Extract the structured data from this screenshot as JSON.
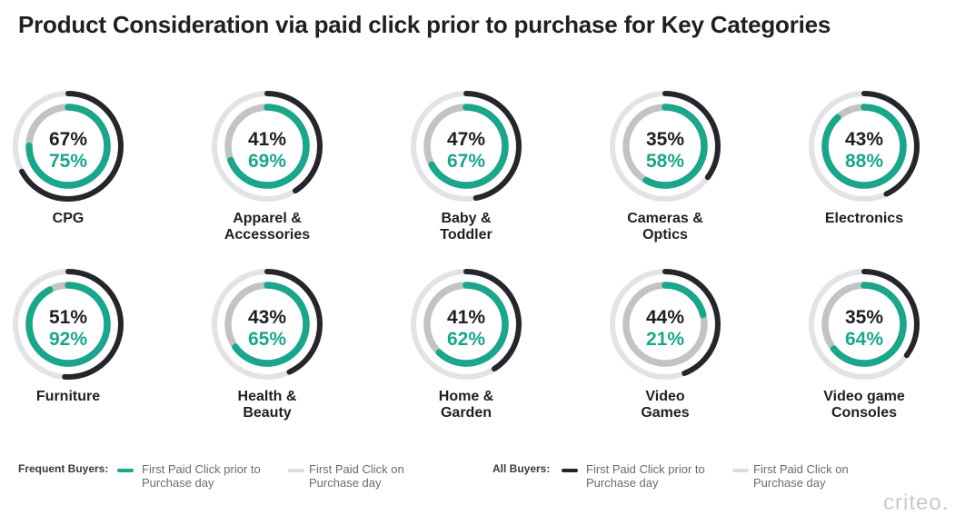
{
  "title": "Product Consideration via paid click prior to purchase for Key Categories",
  "colors": {
    "frequent": "#1aa68a",
    "all": "#25252b",
    "frequent_track": "#c3c3c6",
    "all_track": "#e3e3e5"
  },
  "chart_data": {
    "type": "radial-progress",
    "title": "Product Consideration via paid click prior to purchase for Key Categories",
    "series": [
      {
        "name": "All Buyers: First Paid Click prior to Purchase day",
        "values": [
          67,
          41,
          47,
          35,
          43,
          51,
          43,
          41,
          44,
          35
        ]
      },
      {
        "name": "Frequent Buyers: First Paid Click prior to Purchase day",
        "values": [
          75,
          69,
          67,
          58,
          88,
          92,
          65,
          62,
          21,
          64
        ]
      }
    ],
    "categories": [
      {
        "label_lines": [
          "CPG"
        ],
        "all": 67,
        "frequent": 75,
        "all_text": "67%",
        "frequent_text": "75%"
      },
      {
        "label_lines": [
          "Apparel &",
          "Accessories"
        ],
        "all": 41,
        "frequent": 69,
        "all_text": "41%",
        "frequent_text": "69%"
      },
      {
        "label_lines": [
          "Baby &",
          "Toddler"
        ],
        "all": 47,
        "frequent": 67,
        "all_text": "47%",
        "frequent_text": "67%"
      },
      {
        "label_lines": [
          "Cameras &",
          "Optics"
        ],
        "all": 35,
        "frequent": 58,
        "all_text": "35%",
        "frequent_text": "58%"
      },
      {
        "label_lines": [
          "Electronics"
        ],
        "all": 43,
        "frequent": 88,
        "all_text": "43%",
        "frequent_text": "88%"
      },
      {
        "label_lines": [
          "Furniture"
        ],
        "all": 51,
        "frequent": 92,
        "all_text": "51%",
        "frequent_text": "92%"
      },
      {
        "label_lines": [
          "Health &",
          "Beauty"
        ],
        "all": 43,
        "frequent": 65,
        "all_text": "43%",
        "frequent_text": "65%"
      },
      {
        "label_lines": [
          "Home &",
          "Garden"
        ],
        "all": 41,
        "frequent": 62,
        "all_text": "41%",
        "frequent_text": "62%"
      },
      {
        "label_lines": [
          "Video",
          "Games"
        ],
        "all": 44,
        "frequent": 21,
        "all_text": "44%",
        "frequent_text": "21%"
      },
      {
        "label_lines": [
          "Video game",
          "Consoles"
        ],
        "all": 35,
        "frequent": 64,
        "all_text": "35%",
        "frequent_text": "64%"
      }
    ]
  },
  "legend": {
    "frequent_heading": "Frequent Buyers:",
    "all_heading": "All Buyers:",
    "prior_line1": "First Paid Click prior to",
    "prior_line2": "Purchase day",
    "on_line1": "First Paid Click on",
    "on_line2": "Purchase day"
  },
  "brand": "criteo."
}
